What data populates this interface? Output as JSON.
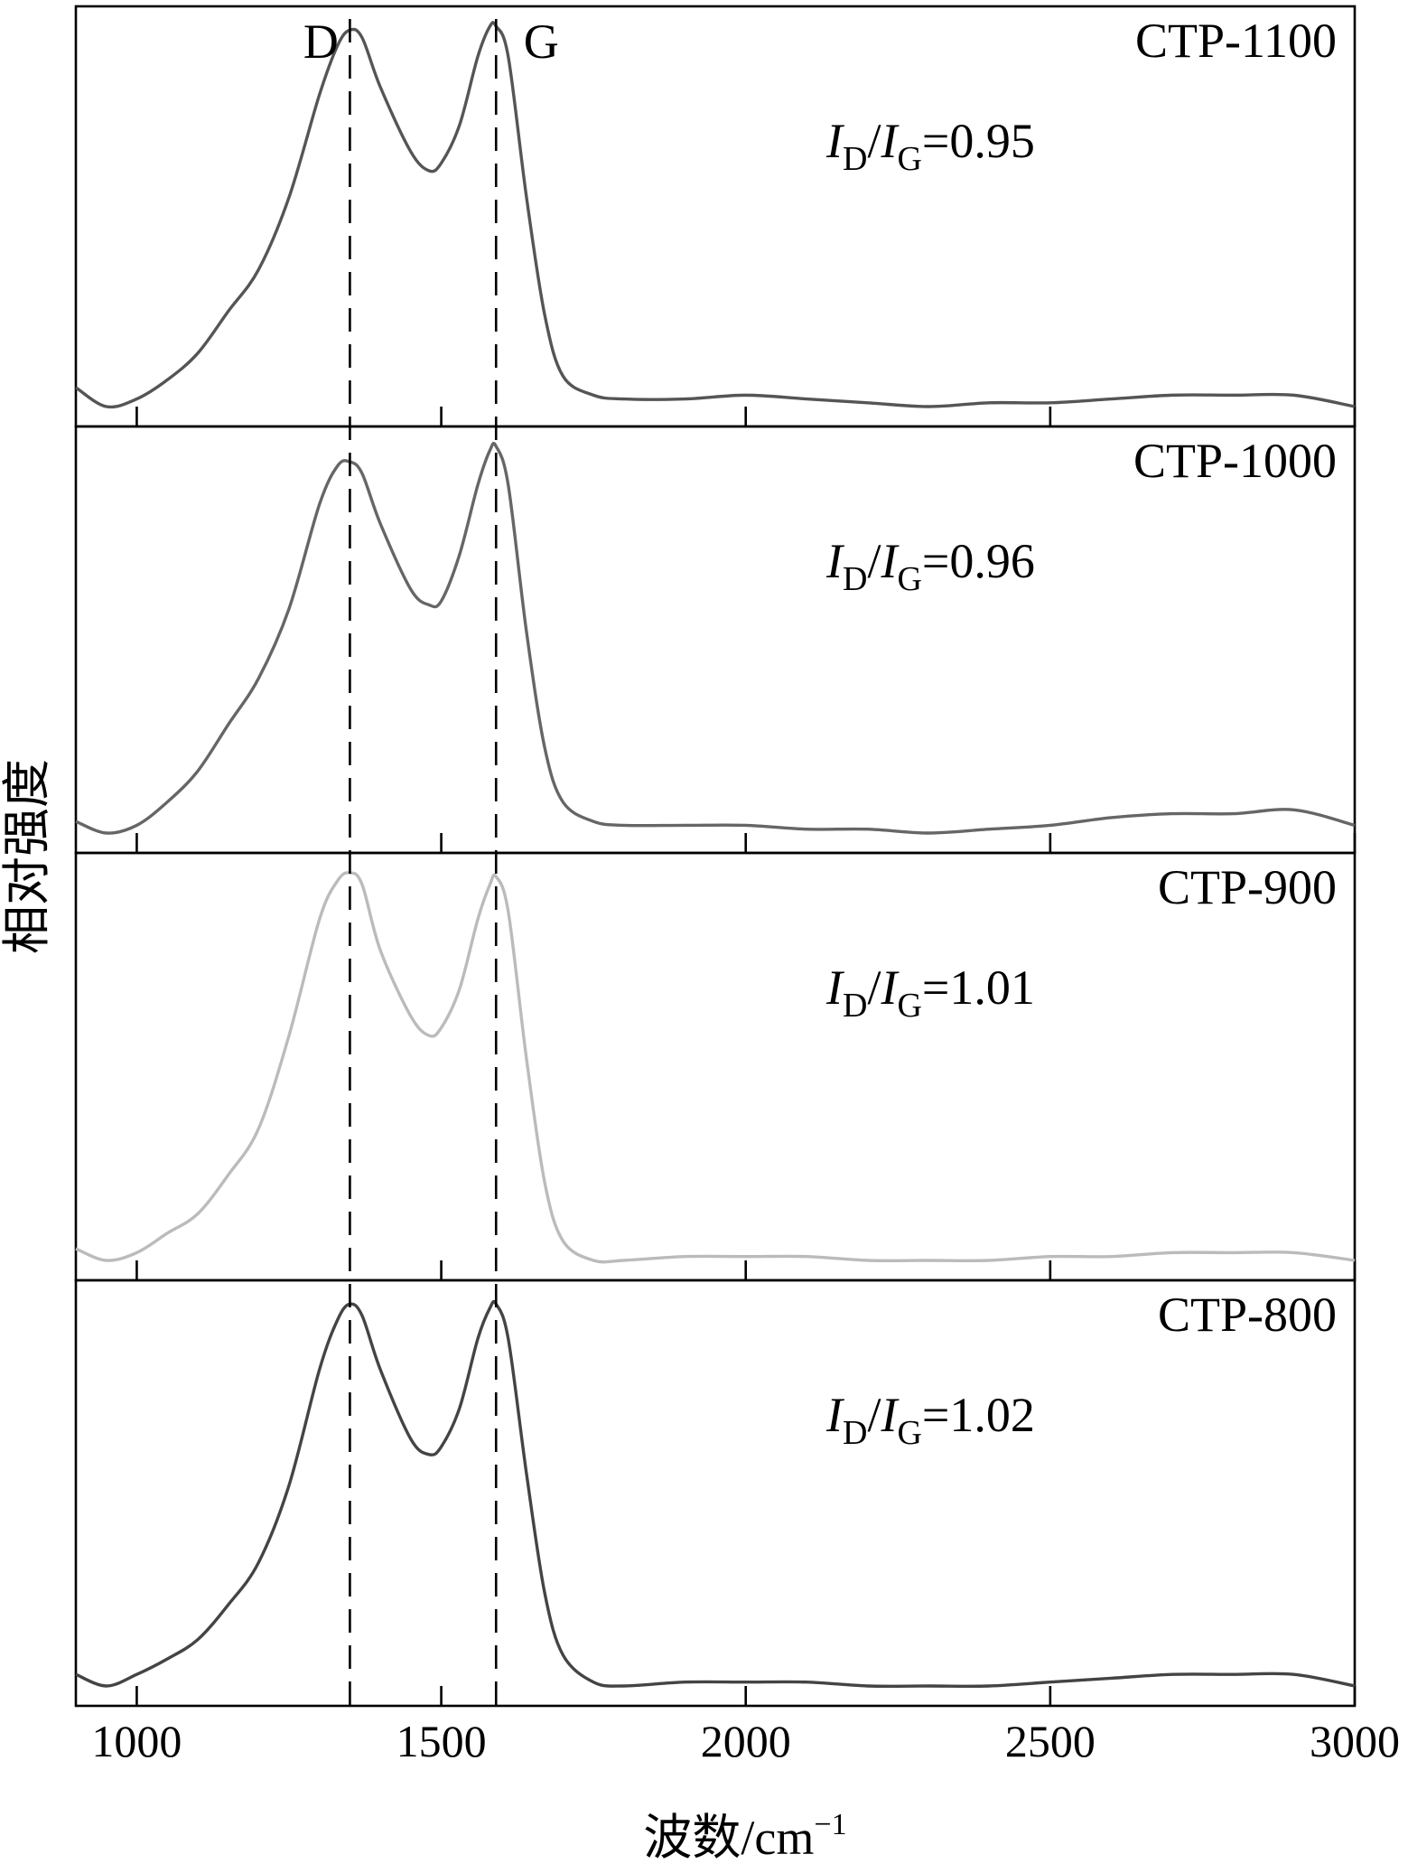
{
  "chart_data": {
    "type": "line",
    "xlabel": "波数/cm",
    "xlabel_sup": "−1",
    "ylabel": "相对强度",
    "xlim": [
      900,
      3000
    ],
    "xticks": [
      1000,
      1500,
      2000,
      2500,
      3000
    ],
    "peak_markers": [
      {
        "label": "D",
        "x": 1350
      },
      {
        "label": "G",
        "x": 1590
      }
    ],
    "legend": "none",
    "grid": false,
    "x": [
      900,
      950,
      1000,
      1050,
      1100,
      1150,
      1200,
      1250,
      1300,
      1330,
      1350,
      1370,
      1400,
      1450,
      1480,
      1500,
      1530,
      1560,
      1580,
      1590,
      1610,
      1640,
      1670,
      1700,
      1750,
      1800,
      1900,
      2000,
      2100,
      2200,
      2300,
      2400,
      2500,
      2600,
      2700,
      2800,
      2900,
      3000
    ],
    "panels": [
      {
        "name": "CTP-1100",
        "ratio_value": "=0.95",
        "color": "#555555",
        "values": [
          0.05,
          0.0,
          0.02,
          0.07,
          0.14,
          0.25,
          0.36,
          0.55,
          0.82,
          0.95,
          0.99,
          0.97,
          0.84,
          0.67,
          0.62,
          0.64,
          0.74,
          0.92,
          1.0,
          1.0,
          0.92,
          0.55,
          0.24,
          0.08,
          0.03,
          0.02,
          0.02,
          0.03,
          0.02,
          0.01,
          0.0,
          0.01,
          0.01,
          0.02,
          0.03,
          0.03,
          0.03,
          0.0
        ]
      },
      {
        "name": "CTP-1000",
        "ratio_value": "=0.96",
        "color": "#666666",
        "values": [
          0.03,
          0.0,
          0.02,
          0.08,
          0.16,
          0.28,
          0.4,
          0.58,
          0.85,
          0.95,
          0.96,
          0.93,
          0.8,
          0.63,
          0.59,
          0.6,
          0.72,
          0.9,
          0.99,
          1.0,
          0.9,
          0.52,
          0.22,
          0.08,
          0.03,
          0.02,
          0.02,
          0.02,
          0.01,
          0.01,
          0.0,
          0.01,
          0.02,
          0.04,
          0.05,
          0.05,
          0.06,
          0.02
        ]
      },
      {
        "name": "CTP-900",
        "ratio_value": "=1.01",
        "color": "#bbbbbb",
        "values": [
          0.03,
          0.0,
          0.02,
          0.07,
          0.12,
          0.22,
          0.34,
          0.58,
          0.88,
          0.98,
          1.0,
          0.97,
          0.8,
          0.63,
          0.58,
          0.6,
          0.7,
          0.88,
          0.97,
          0.99,
          0.9,
          0.52,
          0.2,
          0.05,
          0.0,
          0.0,
          0.01,
          0.01,
          0.01,
          0.0,
          0.0,
          0.0,
          0.01,
          0.01,
          0.02,
          0.02,
          0.02,
          0.0
        ]
      },
      {
        "name": "CTP-800",
        "ratio_value": "=1.02",
        "color": "#444444",
        "values": [
          0.03,
          0.0,
          0.03,
          0.07,
          0.12,
          0.21,
          0.32,
          0.52,
          0.82,
          0.95,
          0.99,
          0.96,
          0.82,
          0.64,
          0.6,
          0.62,
          0.72,
          0.9,
          0.98,
          0.99,
          0.9,
          0.55,
          0.24,
          0.08,
          0.01,
          0.0,
          0.01,
          0.01,
          0.01,
          0.0,
          0.0,
          0.0,
          0.01,
          0.02,
          0.03,
          0.03,
          0.03,
          0.0
        ]
      }
    ]
  },
  "ratio_text": {
    "i": "I",
    "sub_d": "D",
    "slash": "/",
    "sub_g": "G"
  }
}
